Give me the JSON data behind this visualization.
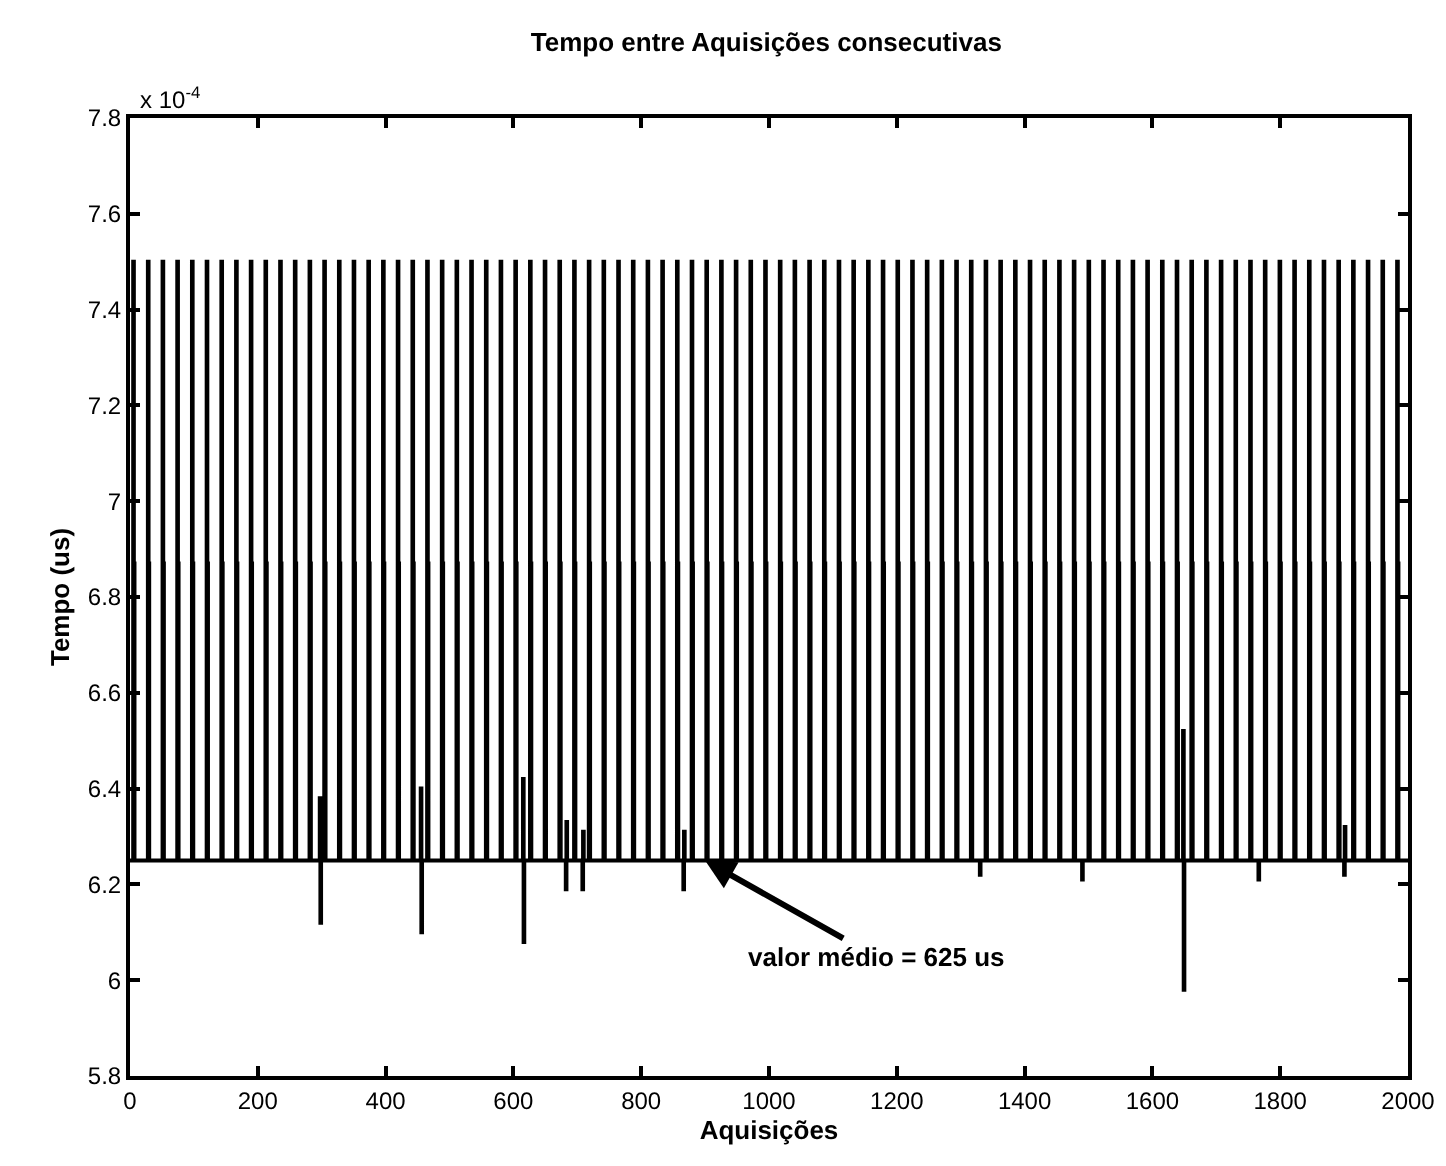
{
  "chart_data": {
    "type": "step",
    "title": "Tempo entre Aquisições consecutivas",
    "xlabel": "Aquisições",
    "ylabel": "Tempo (us)",
    "xlim": [
      0,
      2000
    ],
    "xticks": [
      0,
      200,
      400,
      600,
      800,
      1000,
      1200,
      1400,
      1600,
      1800,
      2000
    ],
    "ylim": [
      5.8,
      7.8
    ],
    "yticks": [
      5.8,
      6,
      6.2,
      6.4,
      6.6,
      6.8,
      7,
      7.2,
      7.4,
      7.6,
      7.8
    ],
    "grid": false,
    "marker": "none",
    "line_style": "solid",
    "annotations": [
      "x 10$^{-4}$",
      {
        "text": "valor médio = 625 us",
        "x": 900,
        "y": 6.25
      }
    ],
    "series": [
      {
        "color": "#000000",
        "x": [
          0,
          5,
          6,
          7,
          28,
          29,
          30,
          51,
          52,
          53,
          74,
          75,
          76,
          97,
          98,
          99,
          120,
          121,
          122,
          143,
          144,
          145,
          166,
          167,
          168,
          189,
          190,
          191,
          212,
          213,
          214,
          235,
          236,
          237,
          258,
          259,
          260,
          281,
          282,
          283,
          297,
          298,
          299,
          304,
          305,
          306,
          327,
          328,
          329,
          350,
          351,
          352,
          373,
          374,
          375,
          396,
          397,
          398,
          419,
          420,
          421,
          442,
          443,
          444,
          455,
          456,
          457,
          465,
          466,
          467,
          488,
          489,
          490,
          511,
          512,
          513,
          534,
          535,
          536,
          557,
          558,
          559,
          580,
          581,
          582,
          603,
          604,
          605,
          615,
          616,
          617,
          626,
          627,
          628,
          649,
          650,
          651,
          672,
          673,
          674,
          682,
          683,
          684,
          695,
          696,
          697,
          708,
          709,
          710,
          718,
          719,
          720,
          741,
          742,
          743,
          764,
          765,
          766,
          787,
          788,
          789,
          810,
          811,
          812,
          833,
          834,
          835,
          856,
          857,
          858,
          866,
          867,
          868,
          879,
          880,
          881,
          902,
          903,
          904,
          925,
          926,
          927,
          948,
          949,
          950,
          971,
          972,
          973,
          994,
          995,
          996,
          1017,
          1018,
          1019,
          1040,
          1041,
          1042,
          1063,
          1064,
          1065,
          1086,
          1087,
          1088,
          1109,
          1110,
          1111,
          1132,
          1133,
          1134,
          1155,
          1156,
          1157,
          1178,
          1179,
          1180,
          1201,
          1202,
          1203,
          1224,
          1225,
          1226,
          1247,
          1248,
          1249,
          1270,
          1271,
          1272,
          1293,
          1294,
          1295,
          1316,
          1317,
          1318,
          1330,
          1331,
          1339,
          1340,
          1341,
          1362,
          1363,
          1364,
          1385,
          1386,
          1387,
          1408,
          1409,
          1410,
          1431,
          1432,
          1433,
          1454,
          1455,
          1456,
          1477,
          1478,
          1479,
          1490,
          1491,
          1500,
          1501,
          1502,
          1523,
          1524,
          1525,
          1546,
          1547,
          1548,
          1569,
          1570,
          1571,
          1592,
          1593,
          1594,
          1615,
          1616,
          1617,
          1638,
          1639,
          1640,
          1648,
          1649,
          1650,
          1661,
          1662,
          1663,
          1684,
          1685,
          1686,
          1707,
          1708,
          1709,
          1730,
          1731,
          1732,
          1753,
          1754,
          1755,
          1766,
          1767,
          1776,
          1777,
          1778,
          1799,
          1800,
          1801,
          1822,
          1823,
          1824,
          1845,
          1846,
          1847,
          1868,
          1869,
          1870,
          1891,
          1892,
          1893,
          1900,
          1901,
          1902,
          1914,
          1915,
          1916,
          1937,
          1938,
          1939,
          1960,
          1961,
          1962,
          1983,
          1984,
          1985,
          2000
        ],
        "values": [
          6.25,
          7.5,
          6.87,
          6.25,
          7.5,
          6.87,
          6.25,
          7.5,
          6.87,
          6.25,
          7.5,
          6.87,
          6.25,
          7.5,
          6.87,
          6.25,
          7.5,
          6.87,
          6.25,
          7.5,
          6.87,
          6.25,
          7.5,
          6.87,
          6.25,
          7.5,
          6.87,
          6.25,
          7.5,
          6.87,
          6.25,
          7.5,
          6.87,
          6.25,
          7.5,
          6.87,
          6.25,
          7.5,
          6.87,
          6.25,
          6.38,
          6.12,
          6.25,
          7.5,
          6.87,
          6.25,
          7.5,
          6.87,
          6.25,
          7.5,
          6.87,
          6.25,
          7.5,
          6.87,
          6.25,
          7.5,
          6.87,
          6.25,
          7.5,
          6.87,
          6.25,
          7.5,
          6.87,
          6.25,
          6.4,
          6.1,
          6.25,
          7.5,
          6.87,
          6.25,
          7.5,
          6.87,
          6.25,
          7.5,
          6.87,
          6.25,
          7.5,
          6.87,
          6.25,
          7.5,
          6.87,
          6.25,
          7.5,
          6.87,
          6.25,
          7.5,
          6.87,
          6.25,
          6.42,
          6.08,
          6.25,
          7.5,
          6.87,
          6.25,
          7.5,
          6.87,
          6.25,
          7.5,
          6.87,
          6.25,
          6.19,
          6.33,
          6.25,
          7.5,
          6.87,
          6.25,
          6.19,
          6.31,
          6.25,
          7.5,
          6.87,
          6.25,
          7.5,
          6.87,
          6.25,
          7.5,
          6.87,
          6.25,
          7.5,
          6.87,
          6.25,
          7.5,
          6.87,
          6.25,
          7.5,
          6.87,
          6.25,
          7.5,
          6.87,
          6.25,
          6.19,
          6.31,
          6.25,
          7.5,
          6.87,
          6.25,
          7.5,
          6.87,
          6.25,
          7.5,
          6.87,
          6.25,
          7.5,
          6.87,
          6.25,
          7.5,
          6.87,
          6.25,
          7.5,
          6.87,
          6.25,
          7.5,
          6.87,
          6.25,
          7.5,
          6.87,
          6.25,
          7.5,
          6.87,
          6.25,
          7.5,
          6.87,
          6.25,
          7.5,
          6.87,
          6.25,
          7.5,
          6.87,
          6.25,
          7.5,
          6.87,
          6.25,
          7.5,
          6.87,
          6.25,
          7.5,
          6.87,
          6.25,
          7.5,
          6.87,
          6.25,
          7.5,
          6.87,
          6.25,
          7.5,
          6.87,
          6.25,
          7.5,
          6.87,
          6.25,
          7.5,
          6.87,
          6.25,
          6.22,
          6.25,
          7.5,
          6.87,
          6.25,
          7.5,
          6.87,
          6.25,
          7.5,
          6.87,
          6.25,
          7.5,
          6.87,
          6.25,
          7.5,
          6.87,
          6.25,
          7.5,
          6.87,
          6.25,
          7.5,
          6.87,
          6.25,
          6.21,
          6.25,
          7.5,
          6.87,
          6.25,
          7.5,
          6.87,
          6.25,
          7.5,
          6.87,
          6.25,
          7.5,
          6.87,
          6.25,
          7.5,
          6.87,
          6.25,
          7.5,
          6.87,
          6.25,
          7.5,
          6.87,
          6.25,
          6.52,
          5.98,
          6.25,
          7.5,
          6.87,
          6.25,
          7.5,
          6.87,
          6.25,
          7.5,
          6.87,
          6.25,
          7.5,
          6.87,
          6.25,
          7.5,
          6.87,
          6.25,
          6.21,
          6.25,
          7.5,
          6.87,
          6.25,
          7.5,
          6.87,
          6.25,
          7.5,
          6.87,
          6.25,
          7.5,
          6.87,
          6.25,
          7.5,
          6.87,
          6.25,
          7.5,
          6.87,
          6.25,
          6.22,
          6.32,
          6.25,
          7.5,
          6.87,
          6.25,
          7.5,
          6.87,
          6.25,
          7.5,
          6.87,
          6.25,
          7.5,
          6.87,
          6.25,
          6.25
        ]
      }
    ]
  }
}
